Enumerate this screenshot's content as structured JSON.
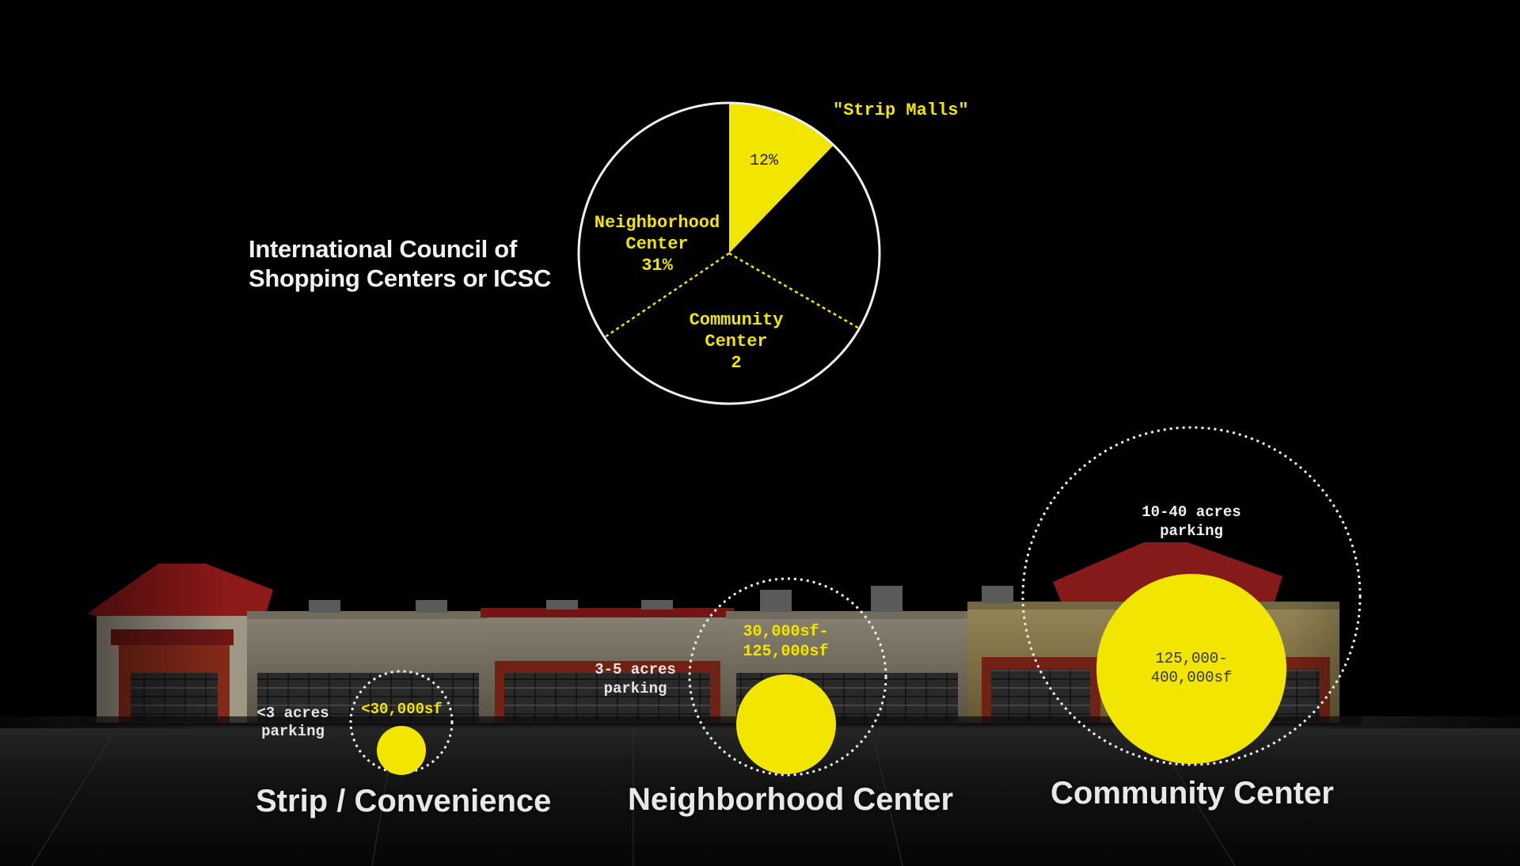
{
  "heading": {
    "line1": "International Council of",
    "line2": "Shopping Centers or ICSC"
  },
  "pie": {
    "strip_label": "\"Strip Malls\"",
    "strip_value": "12%",
    "neighborhood_name": "Neighborhood",
    "neighborhood_name2": "Center",
    "neighborhood_value": "31%",
    "community_name": "Community",
    "community_name2": "Center",
    "community_value": "2"
  },
  "categories": [
    {
      "name": "Strip / Convenience",
      "parking_line1": "<3 acres",
      "parking_line2": "parking",
      "size_line1": "<30,000sf",
      "size_line2": ""
    },
    {
      "name": "Neighborhood Center",
      "parking_line1": "3-5 acres",
      "parking_line2": "parking",
      "size_line1": "30,000sf-",
      "size_line2": "125,000sf"
    },
    {
      "name": "Community Center",
      "parking_line1": "10-40 acres",
      "parking_line2": "parking",
      "size_line1": "125,000-",
      "size_line2": "400,000sf"
    }
  ],
  "chart_data": {
    "type": "pie",
    "title": "",
    "slices": [
      {
        "label": "\"Strip Malls\"",
        "value": 12,
        "display": "12%",
        "highlighted": true
      },
      {
        "label": "Neighborhood Center",
        "value": 31,
        "display": "31%",
        "highlighted": false
      },
      {
        "label": "Community Center",
        "value": 2,
        "display": "2",
        "highlighted": false
      }
    ]
  },
  "colors": {
    "background": "#000000",
    "accent_yellow": "#f2e600",
    "outline": "#f0f0f0",
    "roof_red": "#b21f1f",
    "facade_beige": "#c9b98e"
  }
}
